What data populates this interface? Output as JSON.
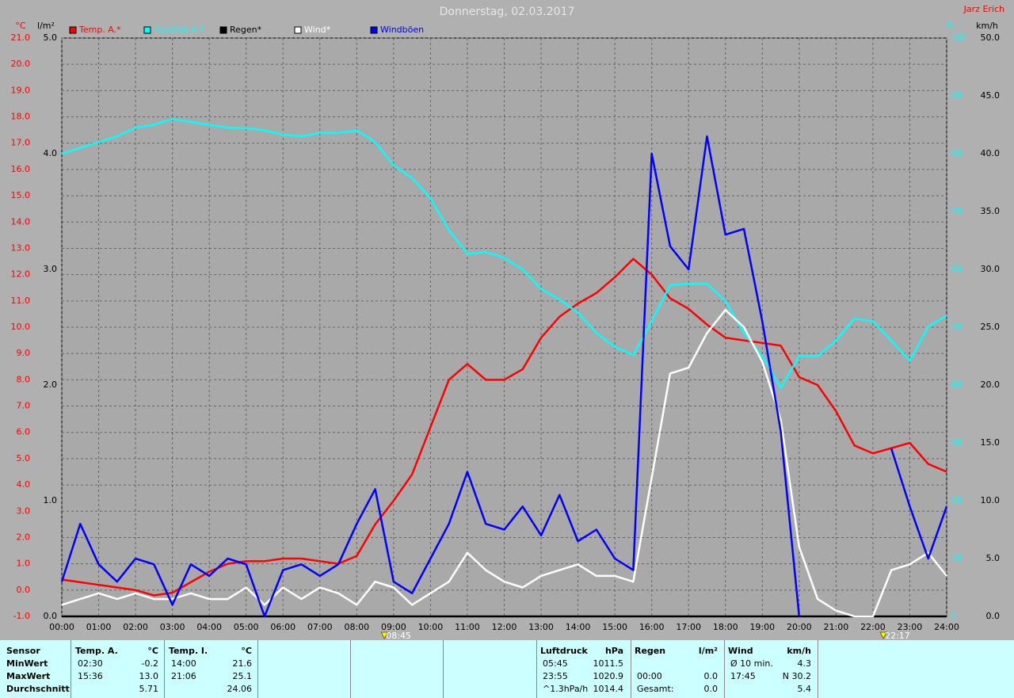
{
  "chart_data": {
    "type": "line",
    "title": "Donnerstag, 02.03.2017",
    "author": "Jarz Erich",
    "ylabel": "°C",
    "y2label": "km/h",
    "y3label": "%",
    "y4label": "l/m²",
    "grid": true,
    "xlim": [
      0,
      24
    ],
    "xticks": [
      {
        "value": 0,
        "label": "00:00"
      },
      {
        "value": 1,
        "label": "01:00"
      },
      {
        "value": 2,
        "label": "02:00"
      },
      {
        "value": 3,
        "label": "03:00"
      },
      {
        "value": 4,
        "label": "04:00"
      },
      {
        "value": 5,
        "label": "05:00"
      },
      {
        "value": 6,
        "label": "06:00"
      },
      {
        "value": 7,
        "label": "07:00"
      },
      {
        "value": 8,
        "label": "08:00"
      },
      {
        "value": 9,
        "label": "09:00"
      },
      {
        "value": 10,
        "label": "10:00"
      },
      {
        "value": 11,
        "label": "11:00"
      },
      {
        "value": 12,
        "label": "12:00"
      },
      {
        "value": 13,
        "label": "13:00"
      },
      {
        "value": 14,
        "label": "14:00"
      },
      {
        "value": 15,
        "label": "15:00"
      },
      {
        "value": 16,
        "label": "16:00"
      },
      {
        "value": 17,
        "label": "17:00"
      },
      {
        "value": 18,
        "label": "18:00"
      },
      {
        "value": 19,
        "label": "19:00"
      },
      {
        "value": 20,
        "label": "20:00"
      },
      {
        "value": 21,
        "label": "21:00"
      },
      {
        "value": 22,
        "label": "22:00"
      },
      {
        "value": 23,
        "label": "23:00"
      },
      {
        "value": 24,
        "label": "24:00"
      }
    ],
    "ylim": [
      -1,
      21
    ],
    "yticks": [
      {
        "value": -1,
        "label": "-1.0"
      },
      {
        "value": 0,
        "label": "0.0"
      },
      {
        "value": 1,
        "label": "1.0"
      },
      {
        "value": 2,
        "label": "2.0"
      },
      {
        "value": 3,
        "label": "3.0"
      },
      {
        "value": 4,
        "label": "4.0"
      },
      {
        "value": 5,
        "label": "5.0"
      },
      {
        "value": 6,
        "label": "6.0"
      },
      {
        "value": 7,
        "label": "7.0"
      },
      {
        "value": 8,
        "label": "8.0"
      },
      {
        "value": 9,
        "label": "9.0"
      },
      {
        "value": 10,
        "label": "10.0"
      },
      {
        "value": 11,
        "label": "11.0"
      },
      {
        "value": 12,
        "label": "12.0"
      },
      {
        "value": 13,
        "label": "13.0"
      },
      {
        "value": 14,
        "label": "14.0"
      },
      {
        "value": 15,
        "label": "15.0"
      },
      {
        "value": 16,
        "label": "16.0"
      },
      {
        "value": 17,
        "label": "17.0"
      },
      {
        "value": 18,
        "label": "18.0"
      },
      {
        "value": 19,
        "label": "19.0"
      },
      {
        "value": 20,
        "label": "20.0"
      },
      {
        "value": 21,
        "label": "21.0"
      }
    ],
    "y2lim": [
      0,
      50
    ],
    "y2ticks": [
      {
        "value": 0,
        "label": "0.0"
      },
      {
        "value": 5,
        "label": "5.0"
      },
      {
        "value": 10,
        "label": "10.0"
      },
      {
        "value": 15,
        "label": "15.0"
      },
      {
        "value": 20,
        "label": "20.0"
      },
      {
        "value": 25,
        "label": "25.0"
      },
      {
        "value": 30,
        "label": "30.0"
      },
      {
        "value": 35,
        "label": "35.0"
      },
      {
        "value": 40,
        "label": "40.0"
      },
      {
        "value": 45,
        "label": "45.0"
      },
      {
        "value": 50,
        "label": "50.0"
      }
    ],
    "y3lim": [
      0,
      100
    ],
    "y3ticks": [
      0,
      10,
      20,
      30,
      40,
      50,
      60,
      70,
      80,
      90,
      100
    ],
    "y4lim": [
      0,
      5
    ],
    "y4ticks": [
      {
        "value": 0,
        "label": "0.0"
      },
      {
        "value": 1,
        "label": "1.0"
      },
      {
        "value": 2,
        "label": "2.0"
      },
      {
        "value": 3,
        "label": "3.0"
      },
      {
        "value": 4,
        "label": "4.0"
      },
      {
        "value": 5,
        "label": "5.0"
      }
    ],
    "x": [
      0,
      0.5,
      1,
      1.5,
      2,
      2.5,
      3,
      3.5,
      4,
      4.5,
      5,
      5.5,
      6,
      6.5,
      7,
      7.5,
      8,
      8.5,
      9,
      9.5,
      10,
      10.5,
      11,
      11.5,
      12,
      12.5,
      13,
      13.5,
      14,
      14.5,
      15,
      15.5,
      16,
      16.5,
      17,
      17.5,
      18,
      18.5,
      19,
      19.5,
      20,
      20.5,
      21,
      21.5,
      22,
      22.5,
      23,
      23.5,
      24
    ],
    "series": [
      {
        "name": "Temp. A.*",
        "color": "#ff0000",
        "axis": "y",
        "values": [
          0.4,
          0.3,
          0.2,
          0.1,
          0.0,
          -0.2,
          -0.1,
          0.3,
          0.7,
          1.0,
          1.1,
          1.1,
          1.2,
          1.2,
          1.1,
          1.0,
          1.3,
          2.5,
          3.4,
          4.4,
          6.2,
          8.0,
          8.6,
          8.0,
          8.0,
          8.4,
          9.6,
          10.4,
          10.9,
          11.3,
          11.9,
          12.6,
          12.0,
          11.1,
          10.7,
          10.1,
          9.6,
          9.5,
          9.4,
          9.3,
          8.1,
          7.8,
          6.8,
          5.5,
          5.2,
          5.4,
          5.6,
          4.8,
          4.5
        ]
      },
      {
        "name": "Feuchte A.*",
        "color": "#00ffff",
        "axis": "y3",
        "values": [
          80,
          81,
          82,
          83,
          84.5,
          85,
          86,
          85.5,
          85,
          84.5,
          84.4,
          84,
          83.3,
          83,
          83.6,
          83.6,
          84,
          82,
          78,
          75.8,
          72.3,
          66.8,
          62.7,
          63,
          62,
          60,
          56.6,
          54.8,
          52.5,
          49,
          46.6,
          45.2,
          51,
          57.3,
          57.5,
          57.5,
          54.5,
          49,
          45,
          39.5,
          45,
          45,
          47.7,
          51.5,
          51,
          47.7,
          44.2,
          50.1,
          52
        ]
      },
      {
        "name": "Regen*",
        "color": "#000000",
        "axis": "y4",
        "values": [
          0,
          0,
          0,
          0,
          0,
          0,
          0,
          0,
          0,
          0,
          0,
          0,
          0,
          0,
          0,
          0,
          0,
          0,
          0,
          0,
          0,
          0,
          0,
          0,
          0,
          0,
          0,
          0,
          0,
          0,
          0,
          0,
          0,
          0,
          0,
          0,
          0,
          0,
          0,
          0,
          0,
          0,
          0,
          0,
          0,
          0,
          0,
          0,
          0
        ]
      },
      {
        "name": "Wind*",
        "color": "#ffffff",
        "axis": "y2",
        "values": [
          1.0,
          1.5,
          2.0,
          1.5,
          2.0,
          1.5,
          1.5,
          2.0,
          1.5,
          1.5,
          2.5,
          1.0,
          2.5,
          1.5,
          2.5,
          2.0,
          1.0,
          3.0,
          2.5,
          1.0,
          2.0,
          3.0,
          5.5,
          4.0,
          3.0,
          2.5,
          3.5,
          4.0,
          4.5,
          3.5,
          3.5,
          3.0,
          12.0,
          21.0,
          21.5,
          24.5,
          26.5,
          25.0,
          22.0,
          17.0,
          6.0,
          1.5,
          0.5,
          0.0,
          0.0,
          4.0,
          4.5,
          5.5,
          3.5
        ]
      },
      {
        "name": "Windböen",
        "color": "#0000ff",
        "axis": "y2",
        "values": [
          3,
          8,
          4.5,
          3,
          5,
          4.5,
          1,
          4.5,
          3.5,
          5,
          4.5,
          0,
          4,
          4.5,
          3.5,
          4.5,
          8,
          11,
          3,
          2,
          5,
          8,
          12.5,
          8,
          7.5,
          9.5,
          7,
          10.5,
          6.5,
          7.5,
          5,
          4,
          40,
          32,
          30,
          41.5,
          33,
          33.5,
          25.5,
          16,
          0,
          null,
          null,
          null,
          null,
          14.5,
          9.5,
          5,
          9.5
        ]
      }
    ],
    "markers": [
      {
        "x": 8.75,
        "label": "08:45"
      },
      {
        "x": 22.283,
        "label": "22:17"
      }
    ]
  },
  "table": {
    "sensor": {
      "header": "Sensor",
      "rows": [
        "MinWert",
        "MaxWert",
        "Durchschnitt"
      ]
    },
    "panels": [
      {
        "title": "Temp. A.",
        "unit": "°C",
        "rows": [
          {
            "time": "02:30",
            "value": "-0.2"
          },
          {
            "time": "15:36",
            "value": "13.0"
          },
          {
            "value": "5.71"
          }
        ]
      },
      {
        "title": "Temp. I.",
        "unit": "°C",
        "rows": [
          {
            "time": "14:00",
            "value": "21.6"
          },
          {
            "time": "21:06",
            "value": "25.1"
          },
          {
            "value": "24.06"
          }
        ]
      },
      {
        "title": "Luftdruck",
        "unit": "hPa",
        "rows": [
          {
            "time": "05:45",
            "value": "1011.5"
          },
          {
            "time": "23:55",
            "value": "1020.9"
          },
          {
            "time": "^1.3hPa/h",
            "value": "1014.4"
          }
        ]
      },
      {
        "title": "Regen",
        "unit": "l/m²",
        "rows": [
          {},
          {
            "time": "00:00",
            "value": "0.0"
          },
          {
            "time": "Gesamt:",
            "value": "0.0"
          }
        ]
      },
      {
        "title": "Wind",
        "unit": "km/h",
        "rows": [
          {
            "time": "Ø 10 min.",
            "value": "4.3"
          },
          {
            "time": "17:45",
            "value": "N 30.2"
          },
          {
            "value": "5.4"
          }
        ]
      }
    ]
  }
}
